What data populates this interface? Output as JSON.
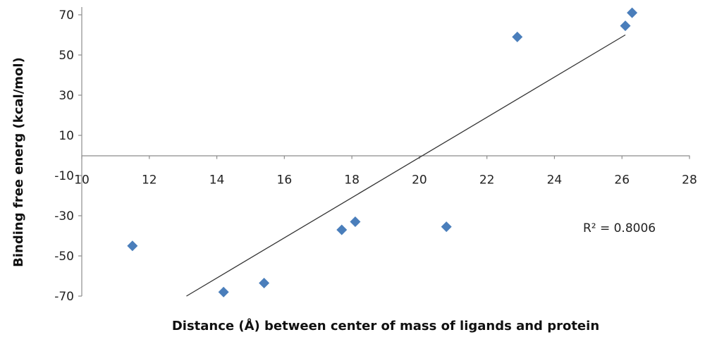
{
  "chart_data": {
    "type": "scatter",
    "title": "",
    "xlabel": "Distance (Å) between center of mass of ligands and protein",
    "ylabel": "Binding free energ (kcal/mol)",
    "xlim": [
      10,
      28
    ],
    "ylim": [
      -70,
      70
    ],
    "x_ticks": [
      10,
      12,
      14,
      16,
      18,
      20,
      22,
      24,
      26,
      28
    ],
    "y_ticks": [
      70,
      50,
      30,
      10,
      -10,
      -30,
      -50,
      -70
    ],
    "grid": false,
    "legend": "none",
    "series": [
      {
        "marker": "diamond",
        "color": "#4a7ebb",
        "points": [
          {
            "x": 11.5,
            "y": -45
          },
          {
            "x": 14.2,
            "y": -68
          },
          {
            "x": 15.4,
            "y": -63.5
          },
          {
            "x": 17.7,
            "y": -37
          },
          {
            "x": 18.1,
            "y": -33
          },
          {
            "x": 20.8,
            "y": -35.5
          },
          {
            "x": 22.9,
            "y": 59
          },
          {
            "x": 26.1,
            "y": 64.5
          },
          {
            "x": 26.3,
            "y": 71
          }
        ]
      }
    ],
    "trendline": {
      "x": [
        13.1,
        26.1
      ],
      "y": [
        -70,
        60
      ],
      "color": "#333333"
    },
    "annotations": [
      {
        "text": "R² = 0.8006",
        "x": 27,
        "y": -36
      }
    ]
  }
}
